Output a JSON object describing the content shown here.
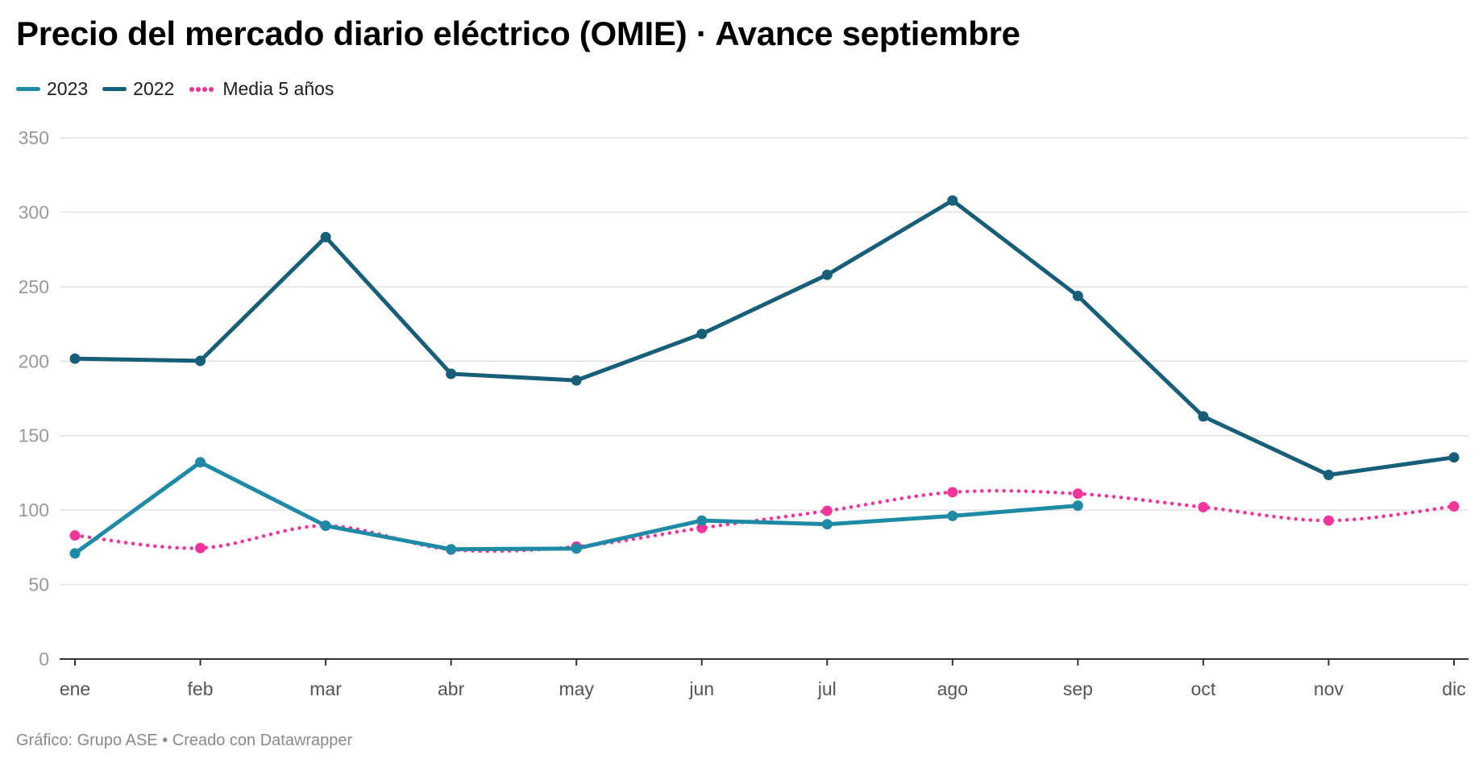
{
  "chart_data": {
    "type": "line",
    "title": "Precio del mercado diario eléctrico (OMIE) · Avance septiembre",
    "categories": [
      "ene",
      "feb",
      "mar",
      "abr",
      "may",
      "jun",
      "jul",
      "ago",
      "sep",
      "oct",
      "nov",
      "dic"
    ],
    "yticks": [
      "0",
      "50",
      "100",
      "150",
      "200",
      "250",
      "300",
      "350"
    ],
    "ylim": [
      0,
      350
    ],
    "grid": true,
    "legend_position": "top-left",
    "series": [
      {
        "name": "2023",
        "color": "#1f8aa5",
        "style": "solid",
        "values": [
          70.9,
          132.1,
          89.5,
          73.7,
          74.2,
          93.0,
          90.5,
          96.1,
          103.0,
          null,
          null,
          null
        ]
      },
      {
        "name": "2022",
        "color": "#175e78",
        "style": "solid",
        "values": [
          201.7,
          200.2,
          283.3,
          191.5,
          187.1,
          218.3,
          258.0,
          307.9,
          243.8,
          162.9,
          123.6,
          135.4
        ]
      },
      {
        "name": "Media 5 años",
        "color": "#f0369a",
        "style": "dotted",
        "values": [
          83.0,
          74.5,
          89.5,
          73.5,
          75.5,
          88.0,
          99.5,
          112.0,
          111.0,
          102.0,
          93.0,
          102.5
        ]
      }
    ],
    "footer": "Gráfico: Grupo ASE • Creado con Datawrapper"
  }
}
